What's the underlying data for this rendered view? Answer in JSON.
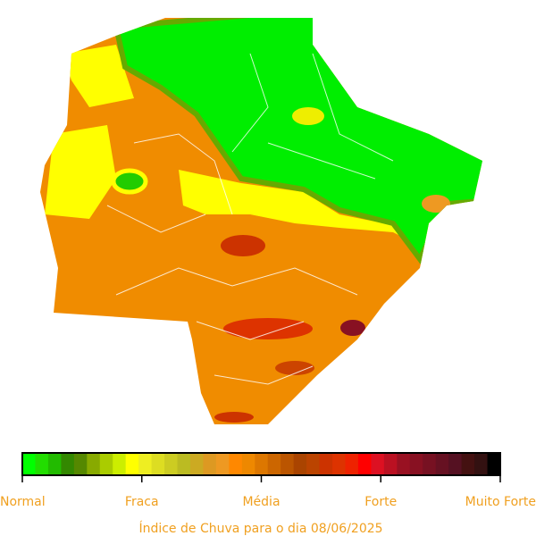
{
  "legend": {
    "colors": [
      "#00ff00",
      "#22dd00",
      "#22bb00",
      "#338800",
      "#558800",
      "#88aa00",
      "#aacc00",
      "#ccee00",
      "#ffff00",
      "#eeee22",
      "#dddd22",
      "#cccc22",
      "#bbbb22",
      "#ccaa22",
      "#dd9922",
      "#ee9922",
      "#ff8800",
      "#ee8800",
      "#dd7700",
      "#cc6600",
      "#bb5500",
      "#aa4400",
      "#bb4400",
      "#cc3300",
      "#dd3300",
      "#ee2200",
      "#ff0000",
      "#dd1122",
      "#bb1122",
      "#991122",
      "#881122",
      "#771122",
      "#661122",
      "#551122",
      "#441111",
      "#331111",
      "#000000"
    ],
    "labels": [
      "Normal",
      "Fraca",
      "Média",
      "Forte",
      "Muito Forte"
    ]
  },
  "caption": "Índice de Chuva para o dia 08/06/2025"
}
